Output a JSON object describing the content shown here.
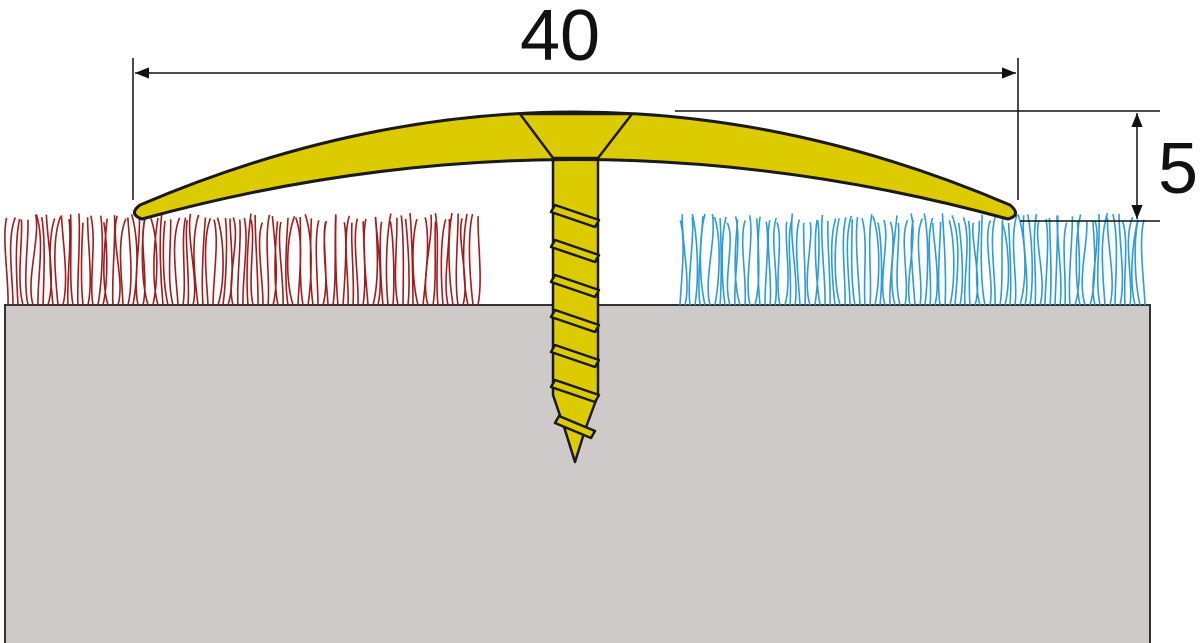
{
  "diagram": {
    "width_dimension": "40",
    "height_dimension": "5"
  },
  "colors": {
    "profile": "#dccb00",
    "substrate": "#cecaca",
    "left_carpet": "#a31b1b",
    "right_carpet": "#2b9bd9",
    "outline": "#1a1a1a"
  }
}
